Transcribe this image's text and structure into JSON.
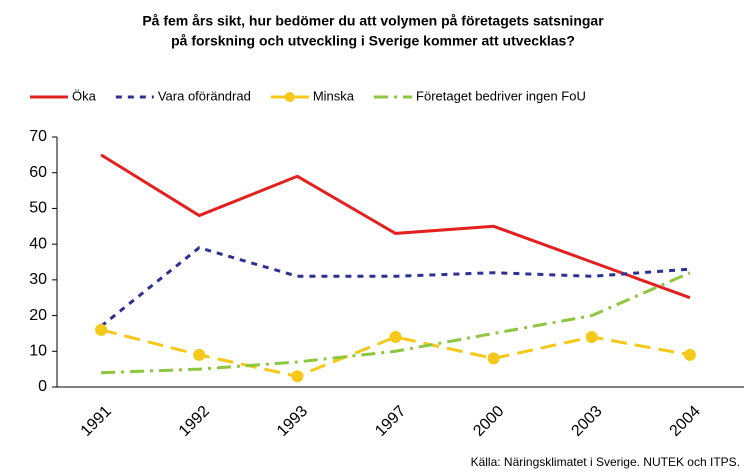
{
  "chart_data": {
    "type": "line",
    "title": [
      "På fem års sikt, hur bedömer du att volymen på företagets satsningar",
      "på forskning och utveckling i Sverige kommer att utvecklas?"
    ],
    "source": "Källa: Näringsklimatet i Sverige. NUTEK och ITPS.",
    "categories": [
      "1991",
      "1992",
      "1993",
      "1997",
      "2000",
      "2003",
      "2004"
    ],
    "series": [
      {
        "name": "Öka",
        "color": "#e3201e",
        "style": "solid",
        "values": [
          65,
          48,
          59,
          43,
          45,
          35,
          25
        ]
      },
      {
        "name": "Vara oförändrad",
        "color": "#2e3192",
        "style": "dashed",
        "values": [
          17,
          39,
          31,
          31,
          32,
          31,
          33
        ]
      },
      {
        "name": "Minska",
        "color": "#f5c81a",
        "style": "longdash",
        "marker": "circle",
        "values": [
          16,
          9,
          3,
          14,
          8,
          14,
          9
        ]
      },
      {
        "name": "Företaget bedriver ingen FoU",
        "color": "#8dc63f",
        "style": "dashdot",
        "values": [
          4,
          5,
          7,
          10,
          15,
          20,
          32
        ]
      }
    ],
    "ylim": [
      0,
      70
    ],
    "yticks": [
      0,
      10,
      20,
      30,
      40,
      50,
      60,
      70
    ],
    "grid": false,
    "legend": "top"
  }
}
